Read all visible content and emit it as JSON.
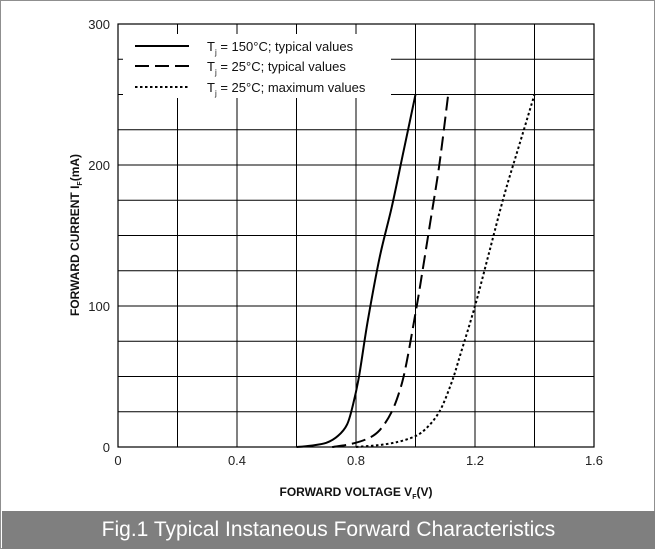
{
  "caption": "Fig.1 Typical Instaneous Forward Characteristics",
  "chart_data": {
    "type": "line",
    "xlabel": {
      "main": "FORWARD VOLTAGE  V",
      "sub": "F",
      "tail": "(V)"
    },
    "ylabel": {
      "main": "FORWARD CURRENT  I",
      "sub": "F",
      "tail": "(mA)"
    },
    "xlim": [
      0,
      1.6
    ],
    "ylim": [
      0,
      300
    ],
    "xticks": [
      "0",
      "0.4",
      "0.8",
      "1.2",
      "1.6"
    ],
    "xtick_values": [
      0,
      0.4,
      0.8,
      1.2,
      1.6
    ],
    "yticks": [
      "0",
      "100",
      "200",
      "300"
    ],
    "ytick_values": [
      0,
      100,
      200,
      300
    ],
    "grid": true,
    "grid_step_x": 0.2,
    "grid_step_y": 25,
    "legend_position": "top-left",
    "series": [
      {
        "name_main": "T",
        "name_sub": "j",
        "name_rest": " = 150°C; typical values",
        "style": "solid",
        "points": [
          [
            0.6,
            0
          ],
          [
            0.65,
            1
          ],
          [
            0.7,
            3
          ],
          [
            0.74,
            8
          ],
          [
            0.77,
            16
          ],
          [
            0.79,
            30
          ],
          [
            0.81,
            50
          ],
          [
            0.84,
            90
          ],
          [
            0.88,
            135
          ],
          [
            0.92,
            170
          ],
          [
            0.96,
            210
          ],
          [
            1.0,
            250
          ]
        ]
      },
      {
        "name_main": "T",
        "name_sub": "j",
        "name_rest": " = 25°C; typical values",
        "style": "dashed",
        "points": [
          [
            0.72,
            0
          ],
          [
            0.78,
            2
          ],
          [
            0.84,
            6
          ],
          [
            0.88,
            12
          ],
          [
            0.92,
            25
          ],
          [
            0.95,
            42
          ],
          [
            0.97,
            60
          ],
          [
            1.0,
            95
          ],
          [
            1.02,
            120
          ],
          [
            1.05,
            160
          ],
          [
            1.08,
            200
          ],
          [
            1.11,
            250
          ]
        ]
      },
      {
        "name_main": "T",
        "name_sub": "j",
        "name_rest": " = 25°C; maximum values",
        "style": "dotted",
        "points": [
          [
            0.8,
            0
          ],
          [
            0.9,
            2
          ],
          [
            0.98,
            6
          ],
          [
            1.03,
            12
          ],
          [
            1.08,
            25
          ],
          [
            1.12,
            45
          ],
          [
            1.15,
            65
          ],
          [
            1.2,
            100
          ],
          [
            1.25,
            140
          ],
          [
            1.3,
            180
          ],
          [
            1.35,
            215
          ],
          [
            1.4,
            250
          ]
        ]
      }
    ]
  }
}
